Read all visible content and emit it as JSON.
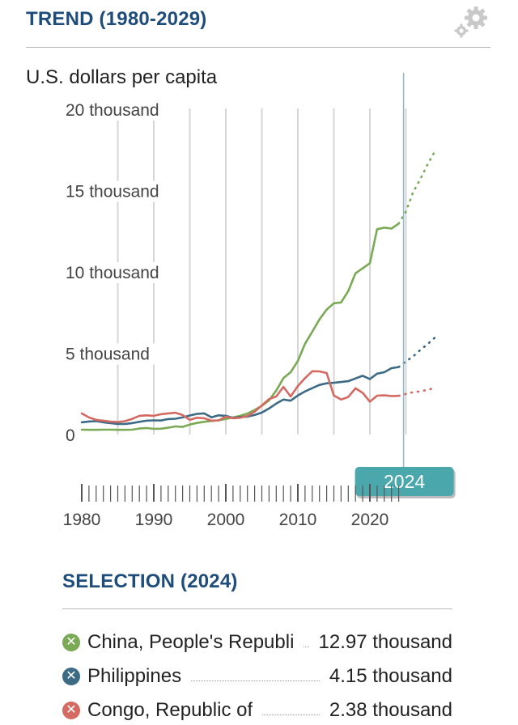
{
  "header": {
    "title": "TREND (1980-2029)"
  },
  "chart_data": {
    "type": "line",
    "title": "TREND (1980-2029)",
    "ylabel": "U.S. dollars per capita",
    "xlabel": "",
    "xlim": [
      1980,
      2029
    ],
    "ylim": [
      0,
      20000
    ],
    "y_tick_values": [
      0,
      5000,
      10000,
      15000,
      20000
    ],
    "y_tick_labels": [
      "0",
      "5 thousand",
      "10 thousand",
      "15 thousand",
      "20 thousand"
    ],
    "x_tick_values": [
      1980,
      1990,
      2000,
      2010,
      2020
    ],
    "x_tick_labels": [
      "1980",
      "1990",
      "2000",
      "2010",
      "2020"
    ],
    "selected_year": 2024,
    "selected_year_label": "2024",
    "projection_start": 2024,
    "grid": true,
    "x": [
      1980,
      1981,
      1982,
      1983,
      1984,
      1985,
      1986,
      1987,
      1988,
      1989,
      1990,
      1991,
      1992,
      1993,
      1994,
      1995,
      1996,
      1997,
      1998,
      1999,
      2000,
      2001,
      2002,
      2003,
      2004,
      2005,
      2006,
      2007,
      2008,
      2009,
      2010,
      2011,
      2012,
      2013,
      2014,
      2015,
      2016,
      2017,
      2018,
      2019,
      2020,
      2021,
      2022,
      2023,
      2024,
      2025,
      2026,
      2027,
      2028,
      2029
    ],
    "series": [
      {
        "name": "China, People's Republi",
        "color": "#7aaa55",
        "values": [
          300,
          290,
          290,
          300,
          300,
          290,
          290,
          300,
          370,
          400,
          350,
          360,
          420,
          500,
          470,
          610,
          710,
          780,
          830,
          870,
          960,
          1050,
          1150,
          1290,
          1510,
          1760,
          2100,
          2700,
          3470,
          3830,
          4520,
          5580,
          6320,
          7080,
          7680,
          8070,
          8120,
          8820,
          9910,
          10220,
          10530,
          12620,
          12720,
          12660,
          12970,
          13700,
          14900,
          15700,
          16600,
          17400
        ]
      },
      {
        "name": "Philippines",
        "color": "#3d6b85",
        "values": [
          750,
          800,
          820,
          750,
          700,
          650,
          650,
          700,
          780,
          850,
          870,
          860,
          950,
          970,
          1050,
          1170,
          1270,
          1300,
          1060,
          1180,
          1150,
          1020,
          1080,
          1100,
          1200,
          1350,
          1600,
          1900,
          2150,
          2080,
          2400,
          2650,
          2850,
          3050,
          3150,
          3180,
          3230,
          3280,
          3450,
          3610,
          3410,
          3740,
          3830,
          4080,
          4150,
          4500,
          4800,
          5200,
          5550,
          5950
        ]
      },
      {
        "name": "Congo, Republic of",
        "color": "#d46a62",
        "values": [
          1300,
          1050,
          900,
          850,
          790,
          770,
          820,
          960,
          1150,
          1180,
          1150,
          1250,
          1300,
          1340,
          1200,
          900,
          1030,
          1000,
          850,
          870,
          1100,
          1000,
          1030,
          1140,
          1400,
          1790,
          2180,
          2340,
          2930,
          2340,
          2980,
          3470,
          3890,
          3880,
          3780,
          2400,
          2150,
          2310,
          2840,
          2560,
          2020,
          2390,
          2410,
          2370,
          2380,
          2500,
          2600,
          2650,
          2750,
          2850
        ]
      }
    ]
  },
  "selection": {
    "title": "SELECTION (2024)",
    "items": [
      {
        "name": "China, People's Republi",
        "value": "12.97 thousand",
        "color": "#7aaa55",
        "icon": "close-icon"
      },
      {
        "name": "Philippines",
        "value": "4.15 thousand",
        "color": "#3d6b85",
        "icon": "close-icon"
      },
      {
        "name": "Congo, Republic of",
        "value": "2.38 thousand",
        "color": "#d46a62",
        "icon": "close-icon"
      }
    ]
  }
}
